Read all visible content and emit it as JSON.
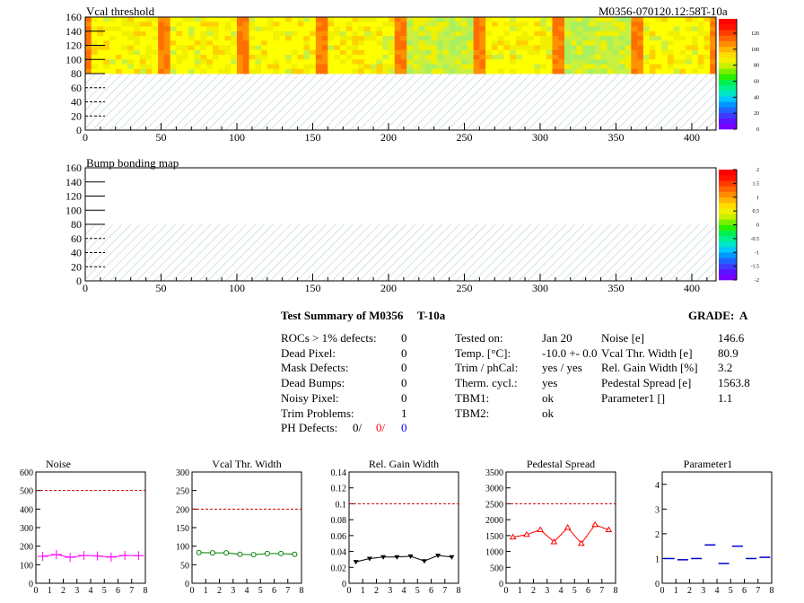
{
  "maps": {
    "vcal": {
      "title": "Vcal threshold",
      "module_label": "M0356-070120.12:58T-10a",
      "x_ticks": [
        "0",
        "50",
        "100",
        "150",
        "200",
        "250",
        "300",
        "350",
        "400"
      ],
      "y_ticks": [
        "0",
        "20",
        "40",
        "60",
        "80",
        "100",
        "120",
        "140",
        "160"
      ],
      "colorbar_ticks": [
        "0",
        "20",
        "40",
        "60",
        "80",
        "100",
        "120"
      ]
    },
    "bump": {
      "title": "Bump bonding map",
      "x_ticks": [
        "0",
        "50",
        "100",
        "150",
        "200",
        "250",
        "300",
        "350",
        "400"
      ],
      "y_ticks": [
        "0",
        "20",
        "40",
        "60",
        "80",
        "100",
        "120",
        "140",
        "160"
      ],
      "colorbar_ticks": [
        "-2",
        "-1.5",
        "-1",
        "-0.5",
        "0",
        "0.5",
        "1",
        "1.5",
        "2"
      ]
    }
  },
  "summary": {
    "title": "Test Summary of M0356",
    "tag": "T-10a",
    "grade_label": "GRADE:",
    "grade": "A",
    "defects": [
      {
        "label": "ROCs > 1% defects:",
        "value": "0"
      },
      {
        "label": "Dead Pixel:",
        "value": "0"
      },
      {
        "label": "Mask Defects:",
        "value": "0"
      },
      {
        "label": "Dead Bumps:",
        "value": "0"
      },
      {
        "label": "Noisy Pixel:",
        "value": "0"
      },
      {
        "label": "Trim Problems:",
        "value": "1"
      }
    ],
    "ph_defects": {
      "label": "PH Defects:",
      "v1": "0/",
      "v2": "0/",
      "v3": "0",
      "c2": "#ff0000",
      "c3": "#0000ff"
    },
    "tests": [
      {
        "label": "Tested on:",
        "value": "Jan 20"
      },
      {
        "label": "Temp. [°C]:",
        "value": "-10.0 +- 0.0"
      },
      {
        "label": "Trim / phCal:",
        "value": "yes / yes"
      },
      {
        "label": "Therm. cycl.:",
        "value": "yes"
      },
      {
        "label": "TBM1:",
        "value": "ok"
      },
      {
        "label": "TBM2:",
        "value": "ok"
      }
    ],
    "params": [
      {
        "label": "Noise [e]",
        "value": "146.6"
      },
      {
        "label": "Vcal Thr. Width [e]",
        "value": "80.9"
      },
      {
        "label": "Rel. Gain Width [%]",
        "value": "3.2"
      },
      {
        "label": "Pedestal Spread [e]",
        "value": "1563.8"
      },
      {
        "label": "Parameter1 []",
        "value": "1.1"
      }
    ]
  },
  "chart_data": [
    {
      "type": "line",
      "title": "Noise",
      "color": "#ff00ff",
      "marker": "cross",
      "x": [
        0.5,
        1.5,
        2.5,
        3.5,
        4.5,
        5.5,
        6.5,
        7.5
      ],
      "values": [
        145,
        155,
        140,
        150,
        147,
        141,
        150,
        149
      ],
      "ylim": [
        0,
        600
      ],
      "xlim": [
        0,
        8
      ],
      "threshold": 500,
      "yticks": [
        "0",
        "100",
        "200",
        "300",
        "400",
        "500",
        "600"
      ],
      "xticks": [
        "0",
        "1",
        "2",
        "3",
        "4",
        "5",
        "6",
        "7",
        "8"
      ]
    },
    {
      "type": "line",
      "title": "Vcal Thr. Width",
      "color": "#008000",
      "marker": "circle",
      "x": [
        0.5,
        1.5,
        2.5,
        3.5,
        4.5,
        5.5,
        6.5,
        7.5
      ],
      "values": [
        83,
        82,
        82,
        78,
        77,
        80,
        80,
        78
      ],
      "ylim": [
        0,
        300
      ],
      "xlim": [
        0,
        8
      ],
      "threshold": 200,
      "yticks": [
        "0",
        "50",
        "100",
        "150",
        "200",
        "250",
        "300"
      ],
      "xticks": [
        "0",
        "1",
        "2",
        "3",
        "4",
        "5",
        "6",
        "7",
        "8"
      ]
    },
    {
      "type": "line",
      "title": "Rel. Gain Width",
      "color": "#000000",
      "marker": "triangle-down",
      "x": [
        0.5,
        1.5,
        2.5,
        3.5,
        4.5,
        5.5,
        6.5,
        7.5
      ],
      "values": [
        0.027,
        0.031,
        0.033,
        0.033,
        0.034,
        0.028,
        0.035,
        0.033
      ],
      "ylim": [
        0,
        0.14
      ],
      "xlim": [
        0,
        8
      ],
      "threshold": 0.1,
      "yticks": [
        "0",
        "0.02",
        "0.04",
        "0.06",
        "0.08",
        "0.1",
        "0.12",
        "0.14"
      ],
      "xticks": [
        "0",
        "1",
        "2",
        "3",
        "4",
        "5",
        "6",
        "7",
        "8"
      ]
    },
    {
      "type": "line",
      "title": "Pedestal Spread",
      "color": "#ff0000",
      "marker": "triangle-up",
      "x": [
        0.5,
        1.5,
        2.5,
        3.5,
        4.5,
        5.5,
        6.5,
        7.5
      ],
      "values": [
        1450,
        1530,
        1680,
        1300,
        1750,
        1250,
        1840,
        1680
      ],
      "ylim": [
        0,
        3500
      ],
      "xlim": [
        0,
        8
      ],
      "threshold": 2500,
      "yticks": [
        "0",
        "500",
        "1000",
        "1500",
        "2000",
        "2500",
        "3000",
        "3500"
      ],
      "xticks": [
        "0",
        "1",
        "2",
        "3",
        "4",
        "5",
        "6",
        "7",
        "8"
      ]
    },
    {
      "type": "scatter",
      "title": "Parameter1",
      "color": "#0000cc",
      "marker": "dash",
      "x": [
        0.5,
        1.5,
        2.5,
        3.5,
        4.5,
        5.5,
        6.5,
        7.5
      ],
      "values": [
        1.0,
        0.95,
        1.0,
        1.55,
        0.8,
        1.5,
        1.0,
        1.05
      ],
      "ylim": [
        0,
        4.5
      ],
      "xlim": [
        0,
        8
      ],
      "threshold": null,
      "yticks": [
        "0",
        "1",
        "2",
        "3",
        "4"
      ],
      "xticks": [
        "0",
        "1",
        "2",
        "3",
        "4",
        "5",
        "6",
        "7",
        "8"
      ]
    }
  ]
}
